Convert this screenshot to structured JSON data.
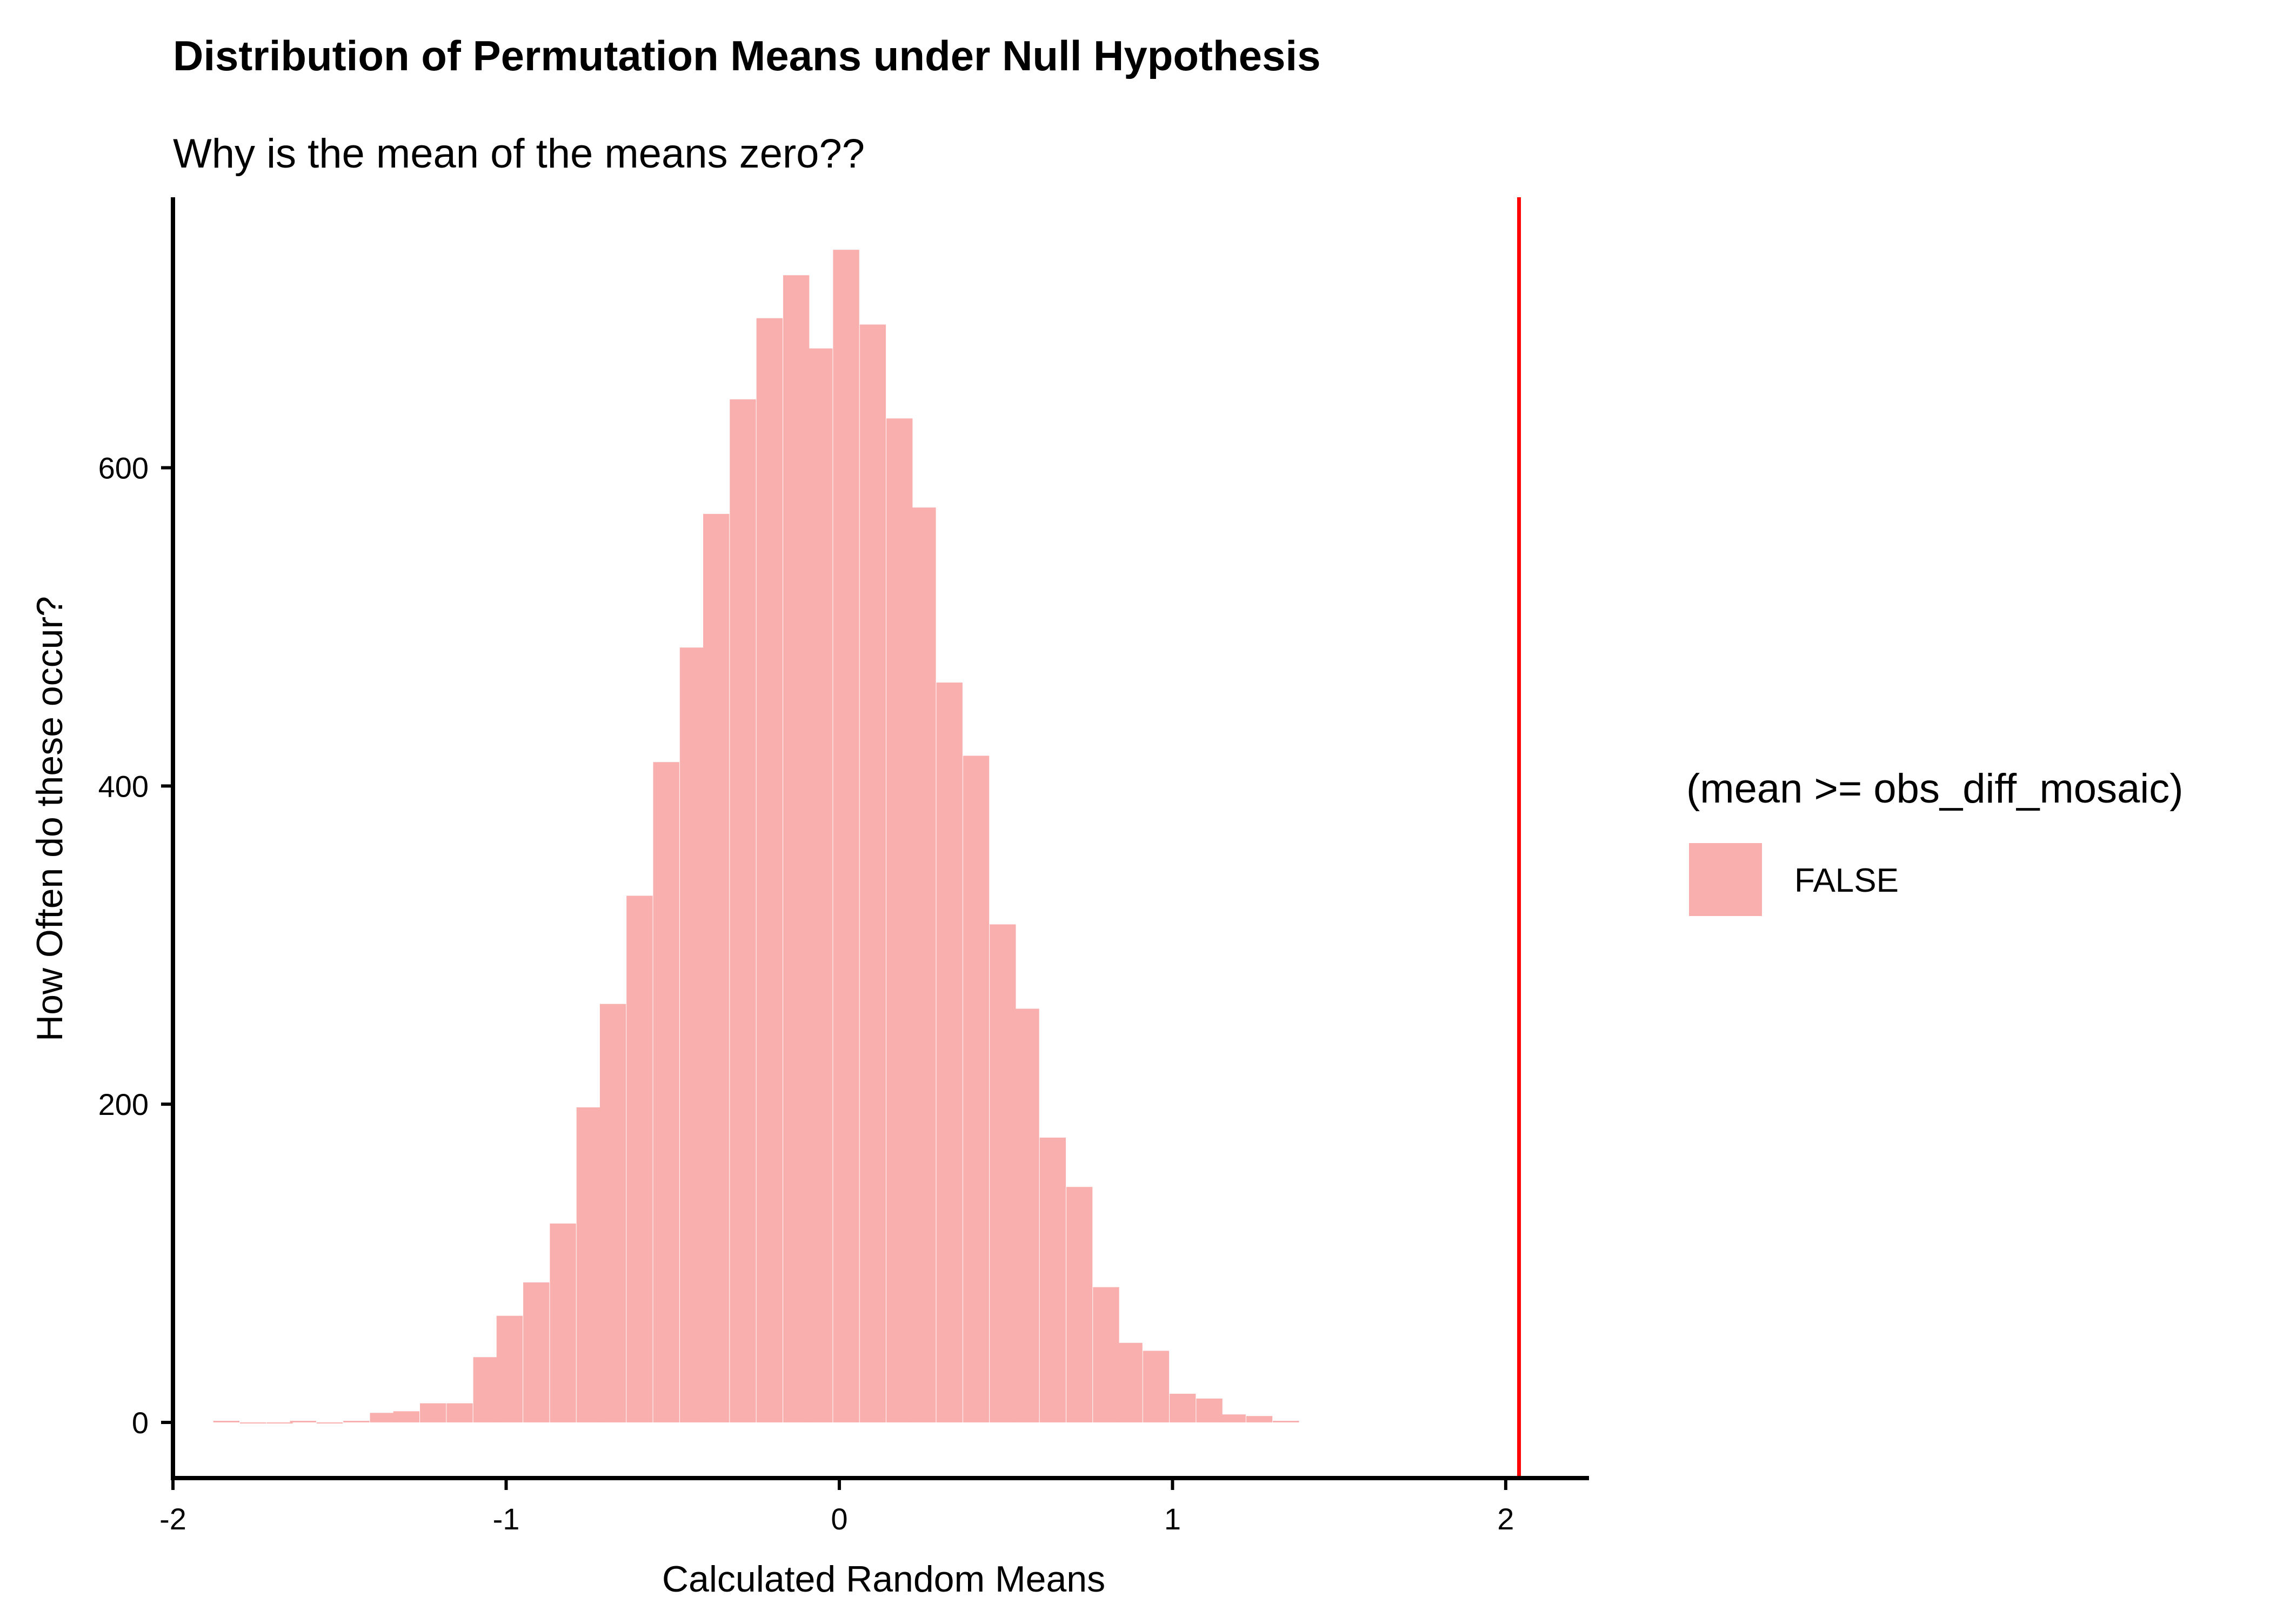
{
  "chart_data": {
    "type": "bar",
    "title": "Distribution of Permutation Means under Null Hypothesis",
    "subtitle": "Why is the mean of the means zero??",
    "xlabel": "Calculated Random Means",
    "ylabel": "How Often do these occur?",
    "xlim": [
      -2.0,
      2.25
    ],
    "ylim": [
      -35,
      770
    ],
    "xticks": [
      -2,
      -1,
      0,
      1,
      2
    ],
    "yticks": [
      0,
      200,
      400,
      600
    ],
    "grid": false,
    "legend": {
      "title": "(mean >= obs_diff_mosaic)",
      "placement": "right",
      "entries": [
        {
          "label": "FALSE",
          "color": "#F8AFAE"
        }
      ]
    },
    "vline": {
      "x": 2.04,
      "color": "#FF0000"
    },
    "colors": {
      "bars": "#F8AFAE",
      "vline": "#FF0000",
      "axis": "#000000"
    },
    "bins": [
      {
        "x": -1.84,
        "y": 1
      },
      {
        "x": -1.76,
        "y": 0
      },
      {
        "x": -1.68,
        "y": 0
      },
      {
        "x": -1.61,
        "y": 1
      },
      {
        "x": -1.53,
        "y": 0
      },
      {
        "x": -1.45,
        "y": 1
      },
      {
        "x": -1.37,
        "y": 6
      },
      {
        "x": -1.3,
        "y": 7
      },
      {
        "x": -1.22,
        "y": 12
      },
      {
        "x": -1.14,
        "y": 12
      },
      {
        "x": -1.06,
        "y": 41
      },
      {
        "x": -0.99,
        "y": 67
      },
      {
        "x": -0.91,
        "y": 88
      },
      {
        "x": -0.83,
        "y": 125
      },
      {
        "x": -0.75,
        "y": 198
      },
      {
        "x": -0.68,
        "y": 263
      },
      {
        "x": -0.6,
        "y": 331
      },
      {
        "x": -0.52,
        "y": 415
      },
      {
        "x": -0.44,
        "y": 487
      },
      {
        "x": -0.37,
        "y": 571
      },
      {
        "x": -0.29,
        "y": 643
      },
      {
        "x": -0.21,
        "y": 694
      },
      {
        "x": -0.13,
        "y": 721
      },
      {
        "x": -0.06,
        "y": 675
      },
      {
        "x": 0.02,
        "y": 737
      },
      {
        "x": 0.1,
        "y": 690
      },
      {
        "x": 0.18,
        "y": 631
      },
      {
        "x": 0.25,
        "y": 575
      },
      {
        "x": 0.33,
        "y": 465
      },
      {
        "x": 0.41,
        "y": 419
      },
      {
        "x": 0.49,
        "y": 313
      },
      {
        "x": 0.56,
        "y": 260
      },
      {
        "x": 0.64,
        "y": 179
      },
      {
        "x": 0.72,
        "y": 148
      },
      {
        "x": 0.8,
        "y": 85
      },
      {
        "x": 0.87,
        "y": 50
      },
      {
        "x": 0.95,
        "y": 45
      },
      {
        "x": 1.03,
        "y": 18
      },
      {
        "x": 1.11,
        "y": 15
      },
      {
        "x": 1.18,
        "y": 5
      },
      {
        "x": 1.26,
        "y": 4
      },
      {
        "x": 1.34,
        "y": 1
      }
    ],
    "binwidth": 0.0775
  }
}
